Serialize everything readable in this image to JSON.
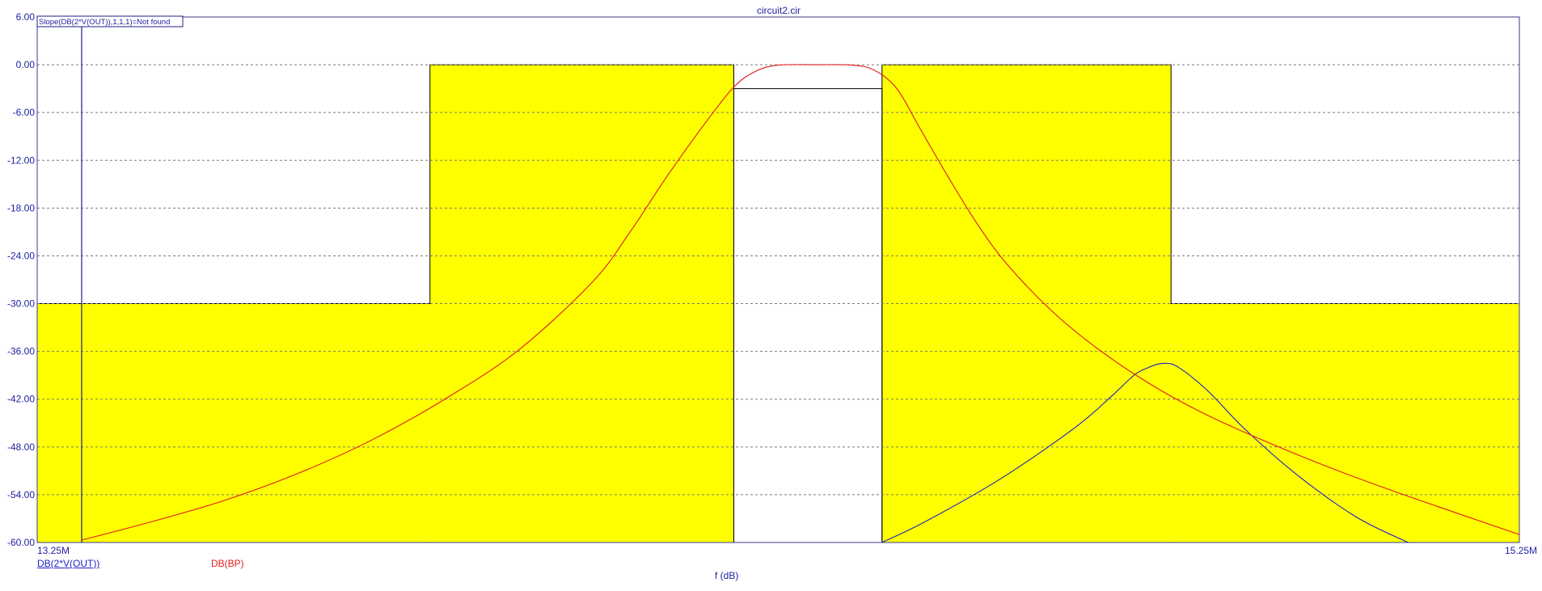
{
  "chart_data": {
    "type": "line",
    "title": "circuit2.cir",
    "xlabel": "f (dB)",
    "ylabel": "",
    "xlim": [
      13.25,
      15.25
    ],
    "ylim": [
      -60,
      6
    ],
    "x_tick_labels": [
      "13.25M",
      "15.25M"
    ],
    "y_tick_labels": [
      "6.00",
      "0.00",
      "-6.00",
      "-12.00",
      "-18.00",
      "-24.00",
      "-30.00",
      "-36.00",
      "-42.00",
      "-48.00",
      "-54.00",
      "-60.00"
    ],
    "grid": "dashed-horizontal",
    "measurement_box": "Slope(DB(2*V(OUT)),1,1,1)=Not found",
    "mask_color": "#ffff00",
    "mask_regions": [
      {
        "x_from": 13.25,
        "x_to": 13.78,
        "y_top": -30
      },
      {
        "x_from": 13.78,
        "x_to": 14.19,
        "y_top": 0
      },
      {
        "x_from": 14.39,
        "x_to": 14.78,
        "y_top": 0
      },
      {
        "x_from": 14.78,
        "x_to": 15.25,
        "y_top": -30
      }
    ],
    "passband_window": {
      "x_from": 14.19,
      "x_to": 14.39,
      "y_top": -3
    },
    "cursor_x": 13.31,
    "series": [
      {
        "name": "DB(2*V(OUT))",
        "color": "#1f1fc8",
        "x": [
          14.39,
          14.45,
          14.55,
          14.65,
          14.7,
          14.73,
          14.75,
          14.77,
          14.79,
          14.83,
          14.88,
          14.95,
          15.03,
          15.1
        ],
        "y": [
          -60.0,
          -57.3,
          -52.0,
          -45.6,
          -41.6,
          -39.0,
          -38.0,
          -37.5,
          -38.0,
          -41.0,
          -45.8,
          -51.5,
          -56.8,
          -60.0
        ]
      },
      {
        "name": "DB(BP)",
        "color": "#e01a1a",
        "x": [
          13.31,
          13.4,
          13.5,
          13.6,
          13.7,
          13.8,
          13.9,
          14.0,
          14.05,
          14.1,
          14.15,
          14.19,
          14.22,
          14.25,
          14.3,
          14.35,
          14.38,
          14.41,
          14.44,
          14.48,
          14.52,
          14.56,
          14.62,
          14.68,
          14.75,
          14.82,
          14.9,
          15.0,
          15.1,
          15.25
        ],
        "y": [
          -59.7,
          -57.5,
          -54.8,
          -51.4,
          -47.2,
          -42.0,
          -35.8,
          -27.2,
          -21.0,
          -14.0,
          -7.5,
          -2.8,
          -0.8,
          -0.05,
          0.0,
          -0.05,
          -0.7,
          -3.0,
          -7.8,
          -14.2,
          -20.2,
          -25.2,
          -31.0,
          -35.6,
          -40.0,
          -43.6,
          -47.0,
          -50.8,
          -54.2,
          -59.0
        ]
      }
    ]
  }
}
